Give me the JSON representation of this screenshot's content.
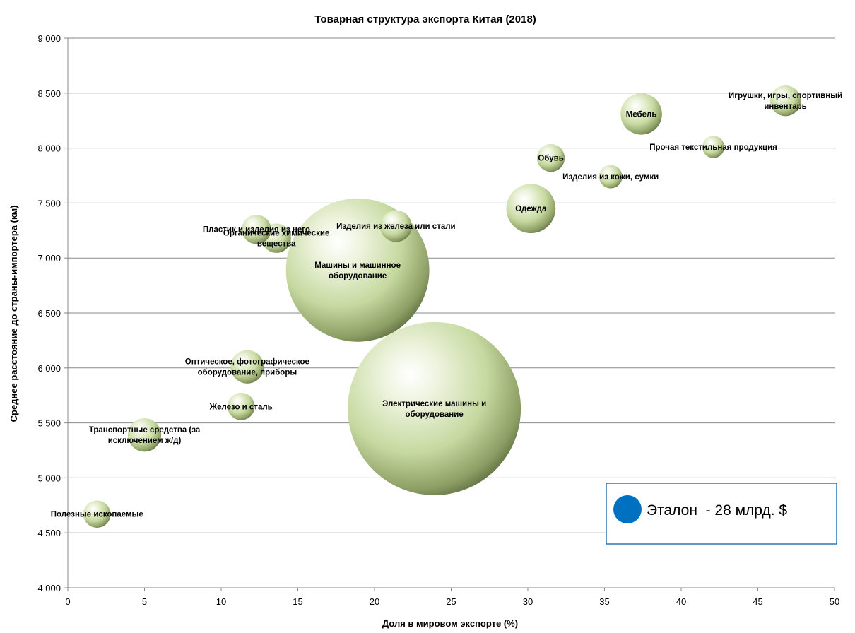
{
  "chart_data": {
    "type": "bubble",
    "title": "Товарная структура экспорта Китая (2018)",
    "xlabel": "Доля в мировом экспорте (%)",
    "ylabel": "Среднее расстояние до страны-импортера (км)",
    "xlim": [
      0,
      50
    ],
    "ylim": [
      4000,
      9000
    ],
    "x_ticks": [
      0,
      5,
      10,
      15,
      20,
      25,
      30,
      35,
      40,
      45,
      50
    ],
    "x_tick_labels": [
      "0",
      "5",
      "10",
      "15",
      "20",
      "25",
      "30",
      "35",
      "40",
      "45",
      "50"
    ],
    "y_ticks": [
      4000,
      4500,
      5000,
      5500,
      6000,
      6500,
      7000,
      7500,
      8000,
      8500,
      9000
    ],
    "y_tick_labels": [
      "4 000",
      "4 500",
      "5 000",
      "5 500",
      "6 000",
      "6 500",
      "7 000",
      "7 500",
      "8 000",
      "8 500",
      "9 000"
    ],
    "grid": true,
    "bubble_color": "#c6d9a0",
    "points": [
      {
        "label_lines": [
          "Полезные ископаемые"
        ],
        "x": 1.9,
        "y": 4670,
        "size": 26
      },
      {
        "label_lines": [
          "Транспортные средства (за",
          "исключением ж/д)"
        ],
        "x": 5.0,
        "y": 5390,
        "size": 39
      },
      {
        "label_lines": [
          "Железо и сталь"
        ],
        "x": 11.3,
        "y": 5650,
        "size": 26
      },
      {
        "label_lines": [
          "Оптическое, фотографическое",
          "оборудование, приборы"
        ],
        "x": 11.7,
        "y": 6010,
        "size": 39
      },
      {
        "label_lines": [
          "Органические химические",
          "вещества"
        ],
        "x": 13.6,
        "y": 7180,
        "size": 30
      },
      {
        "label_lines": [
          "Пластик и изделия из него"
        ],
        "x": 12.3,
        "y": 7260,
        "size": 30
      },
      {
        "label_lines": [
          "Изделия из железа или стали"
        ],
        "x": 21.4,
        "y": 7290,
        "size": 35
      },
      {
        "label_lines": [
          "Машины и машинное",
          "оборудование"
        ],
        "x": 18.9,
        "y": 6890,
        "size": 720
      },
      {
        "label_lines": [
          "Электрические машины и",
          "оборудование"
        ],
        "x": 23.9,
        "y": 5630,
        "size": 1050
      },
      {
        "label_lines": [
          "Одежда"
        ],
        "x": 30.2,
        "y": 7450,
        "size": 85
      },
      {
        "label_lines": [
          "Обувь"
        ],
        "x": 31.5,
        "y": 7910,
        "size": 27
      },
      {
        "label_lines": [
          "Изделия из кожи, сумки"
        ],
        "x": 35.4,
        "y": 7740,
        "size": 19
      },
      {
        "label_lines": [
          "Мебель"
        ],
        "x": 37.4,
        "y": 8310,
        "size": 60
      },
      {
        "label_lines": [
          "Прочая текстильная продукция"
        ],
        "x": 42.1,
        "y": 8010,
        "size": 17
      },
      {
        "label_lines": [
          "Игрушки, игры, спортивный",
          "инвентарь"
        ],
        "x": 46.8,
        "y": 8430,
        "size": 33
      }
    ],
    "legend": {
      "text": "Эталон  - 28 млрд. $",
      "reference_size": 28,
      "marker_color": "#0070c0",
      "position": "lower-right"
    }
  }
}
